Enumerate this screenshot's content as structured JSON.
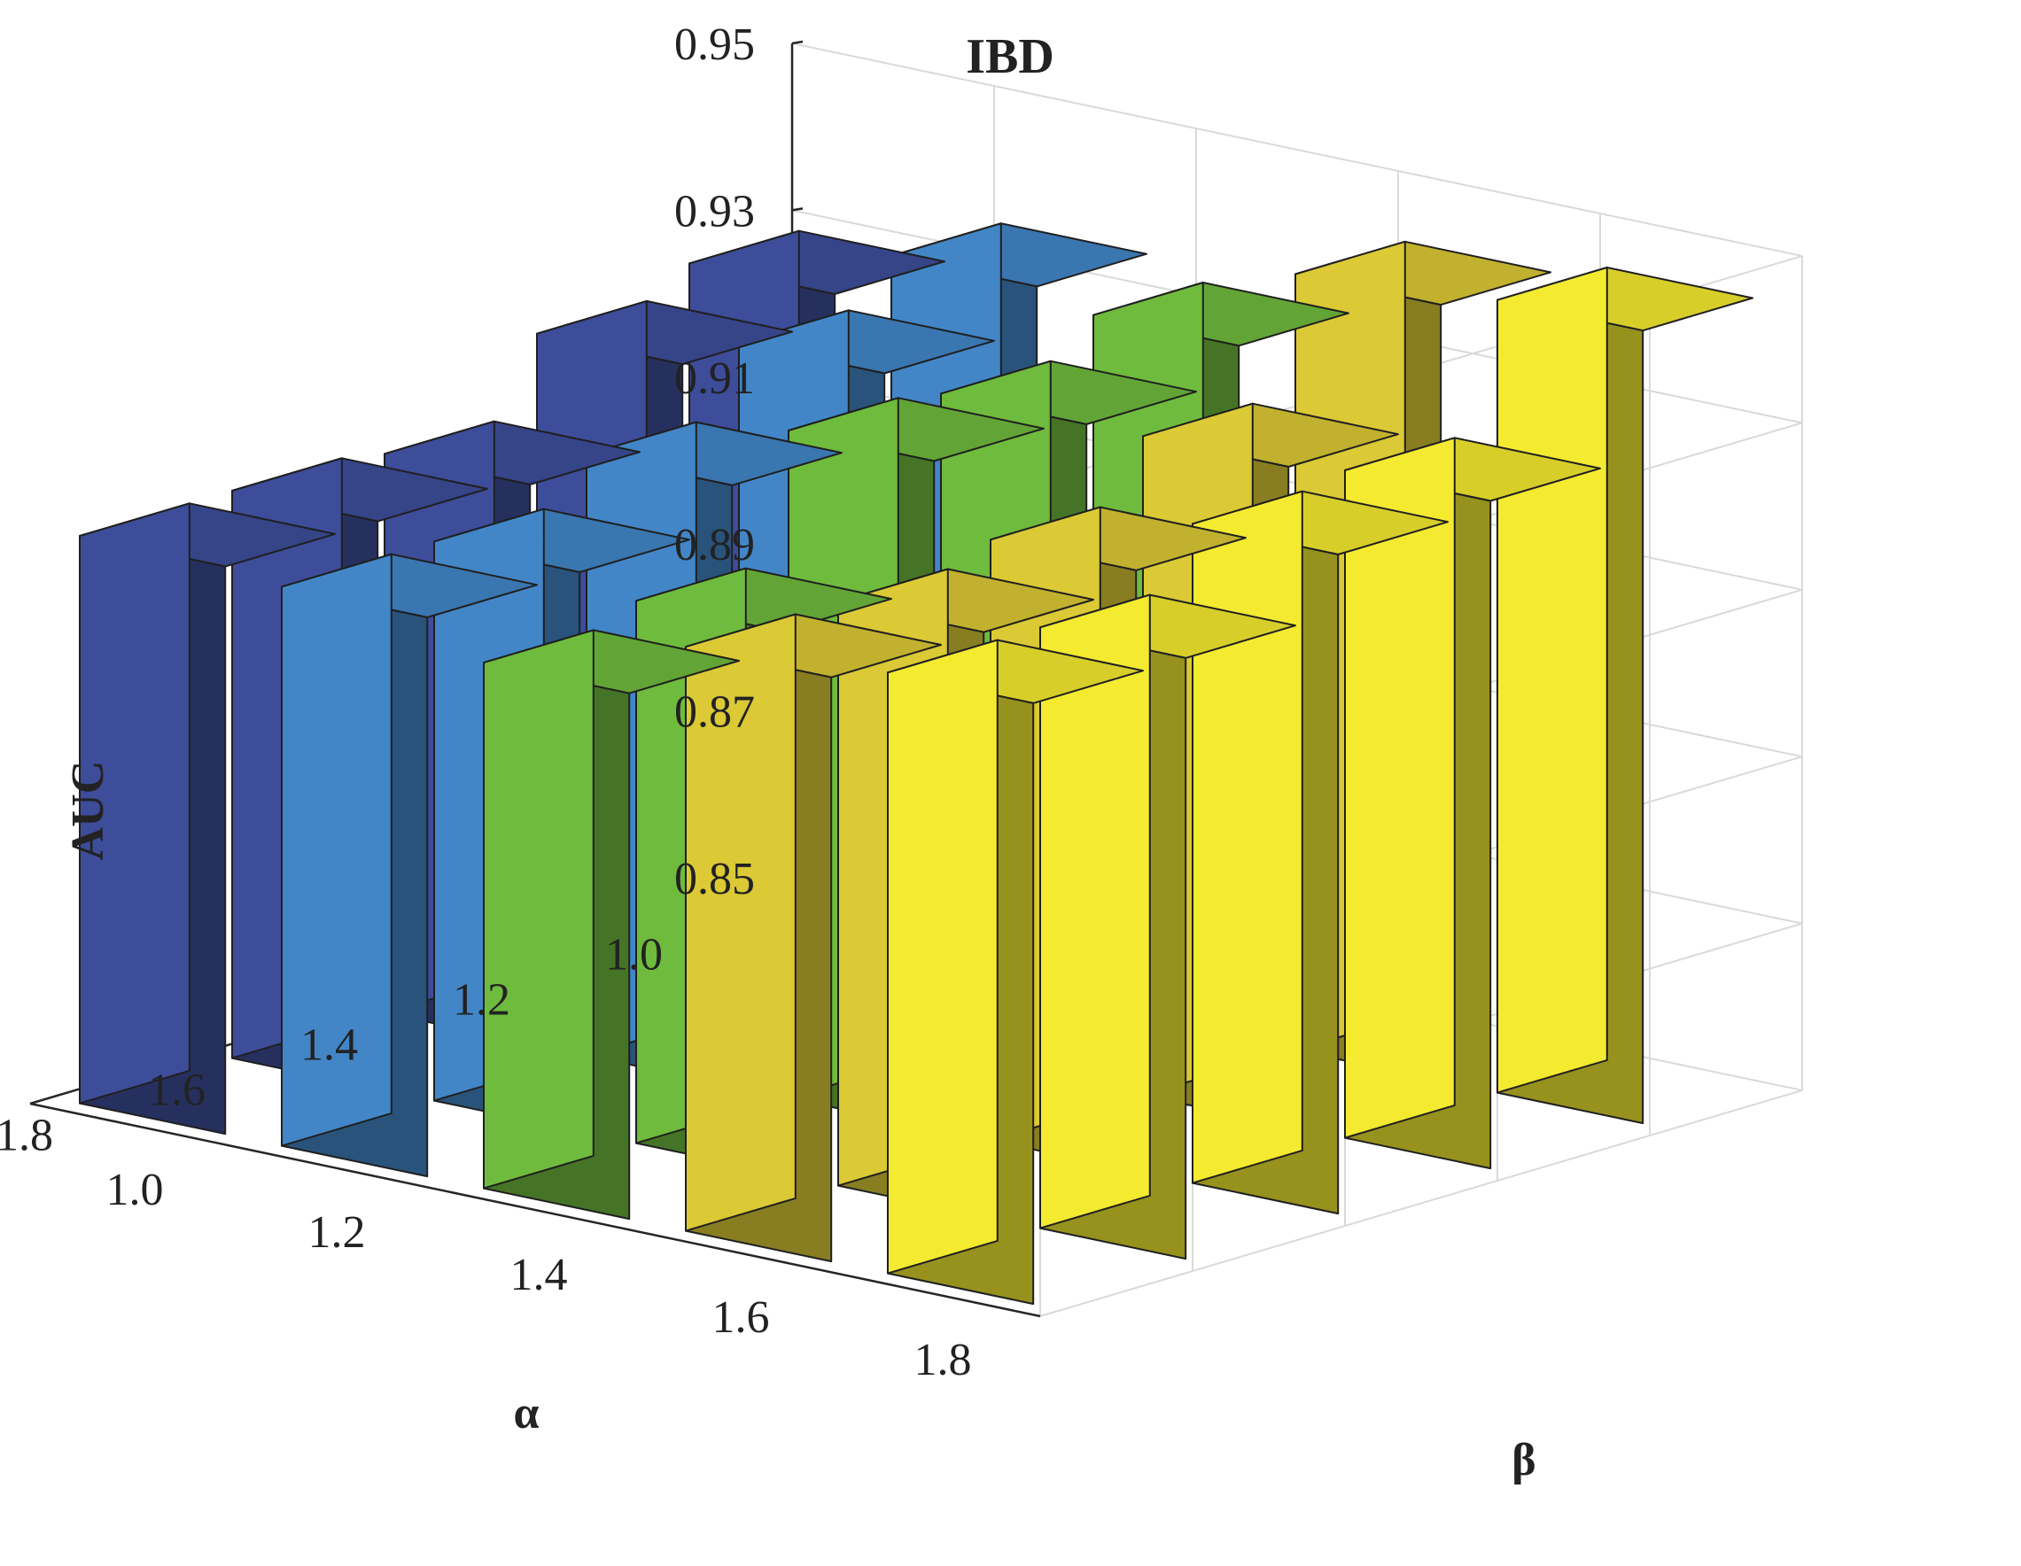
{
  "chart_data": {
    "type": "bar3d",
    "title": "IBD",
    "zlabel": "AUC",
    "xlabel": "α",
    "ylabel": "β",
    "alpha": [
      "1.0",
      "1.2",
      "1.4",
      "1.6",
      "1.8"
    ],
    "beta": [
      "1.0",
      "1.2",
      "1.4",
      "1.6",
      "1.8"
    ],
    "zlim": [
      0.85,
      0.95
    ],
    "zticks": [
      "0.85",
      "0.87",
      "0.89",
      "0.91",
      "0.93",
      "0.95"
    ],
    "grid": true,
    "values": [
      [
        0.929,
        0.935,
        0.933,
        0.943,
        0.945
      ],
      [
        0.926,
        0.93,
        0.929,
        0.929,
        0.93
      ],
      [
        0.917,
        0.922,
        0.93,
        0.922,
        0.929
      ],
      [
        0.918,
        0.917,
        0.915,
        0.92,
        0.922
      ],
      [
        0.918,
        0.917,
        0.913,
        0.92,
        0.922
      ]
    ],
    "colors": [
      "#3d4d9a",
      "#4286c7",
      "#6fbb3d",
      "#dbc935",
      "#f4ea30"
    ]
  }
}
